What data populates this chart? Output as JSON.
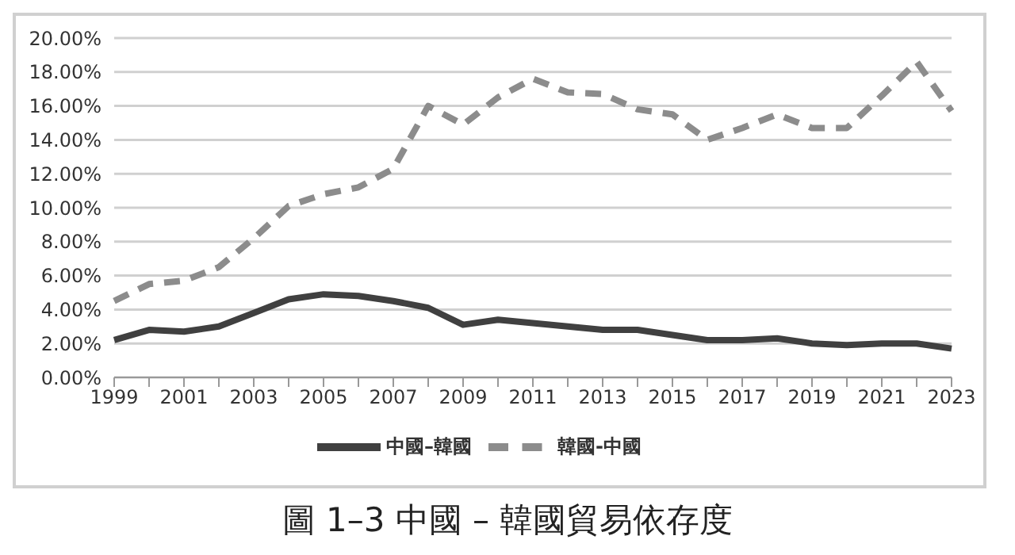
{
  "chart_data": {
    "type": "line",
    "title": "圖 1–3 中國 – 韓國貿易依存度",
    "categories": [
      "1999",
      null,
      "2001",
      null,
      "2003",
      null,
      "2005",
      null,
      "2007",
      null,
      "2009",
      null,
      "2011",
      null,
      "2013",
      null,
      "2015",
      null,
      "2017",
      null,
      "2019",
      null,
      "2021",
      null,
      "2023"
    ],
    "series": [
      {
        "name": "中國–韓國",
        "color": "#404040",
        "line_style": "solid",
        "values": [
          2.2,
          2.8,
          2.7,
          3.0,
          3.8,
          4.6,
          4.9,
          4.8,
          4.5,
          4.1,
          3.1,
          3.4,
          3.2,
          3.0,
          2.8,
          2.8,
          2.5,
          2.2,
          2.2,
          2.3,
          2.0,
          1.9,
          2.0,
          2.0,
          1.7
        ]
      },
      {
        "name": "韓國-中國",
        "color": "#8c8c8c",
        "line_style": "dashed",
        "values": [
          4.5,
          5.5,
          5.7,
          6.5,
          8.2,
          10.1,
          10.8,
          11.2,
          12.3,
          16.0,
          14.9,
          16.5,
          17.6,
          16.8,
          16.7,
          15.8,
          15.5,
          14.0,
          14.7,
          15.5,
          14.7,
          14.7,
          16.6,
          18.6,
          15.7
        ]
      }
    ],
    "ylim": [
      0,
      20
    ],
    "yticks": [
      {
        "value": 0,
        "label": "0.00%"
      },
      {
        "value": 2,
        "label": "2.00%"
      },
      {
        "value": 4,
        "label": "4.00%"
      },
      {
        "value": 6,
        "label": "6.00%"
      },
      {
        "value": 8,
        "label": "8.00%"
      },
      {
        "value": 10,
        "label": "10.00%"
      },
      {
        "value": 12,
        "label": "12.00%"
      },
      {
        "value": 14,
        "label": "14.00%"
      },
      {
        "value": 16,
        "label": "16.00%"
      },
      {
        "value": 18,
        "label": "18.00%"
      },
      {
        "value": 20,
        "label": "20.00%"
      }
    ],
    "grid": "y",
    "legend": "bottom",
    "marker": "none"
  }
}
